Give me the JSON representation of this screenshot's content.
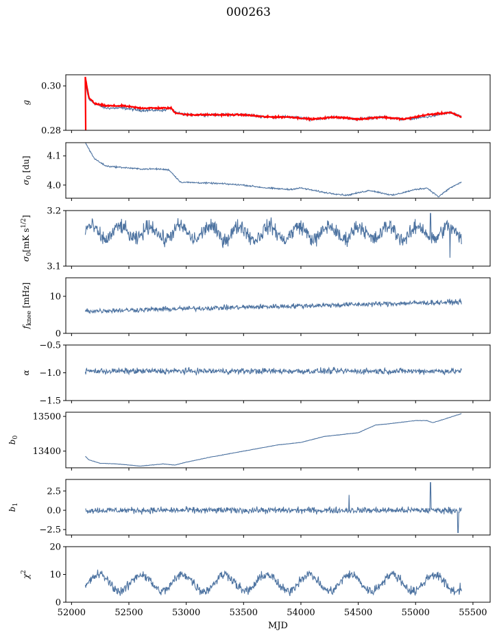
{
  "title": "000263",
  "chart_data": [
    {
      "type": "line",
      "ylabel": "g",
      "ylim": [
        0.28,
        0.305
      ],
      "yticks": [
        0.28,
        0.3
      ],
      "ytick_labels": [
        "0.28",
        "0.30"
      ],
      "xlim": [
        51950,
        55650
      ],
      "series": [
        {
          "color": "#4c72a0",
          "x": [
            52120,
            52150,
            52200,
            52300,
            52450,
            52600,
            52700,
            52800,
            52870,
            52900,
            53000,
            53200,
            53500,
            53700,
            53900,
            54100,
            54300,
            54500,
            54700,
            54900,
            55100,
            55300,
            55400
          ],
          "y": [
            0.301,
            0.294,
            0.292,
            0.29,
            0.29,
            0.289,
            0.289,
            0.289,
            0.29,
            0.288,
            0.287,
            0.287,
            0.287,
            0.286,
            0.286,
            0.285,
            0.286,
            0.285,
            0.286,
            0.285,
            0.286,
            0.288,
            0.286
          ]
        },
        {
          "color": "#ff0000",
          "x": [
            52120,
            52150,
            52200,
            52300,
            52450,
            52600,
            52700,
            52800,
            52870,
            52900,
            53000,
            53200,
            53500,
            53700,
            53900,
            54100,
            54300,
            54500,
            54700,
            54900,
            55100,
            55300,
            55400
          ],
          "y": [
            0.304,
            0.295,
            0.292,
            0.291,
            0.291,
            0.29,
            0.29,
            0.29,
            0.29,
            0.288,
            0.287,
            0.287,
            0.287,
            0.286,
            0.286,
            0.285,
            0.286,
            0.285,
            0.286,
            0.285,
            0.287,
            0.288,
            0.286
          ]
        }
      ]
    },
    {
      "type": "line",
      "ylabel": "σ0 [du]",
      "ylim": [
        3.955,
        4.145
      ],
      "yticks": [
        4.0,
        4.1
      ],
      "ytick_labels": [
        "4.0",
        "4.1"
      ],
      "xlim": [
        51950,
        55650
      ],
      "series": [
        {
          "color": "#4c72a0",
          "x": [
            52120,
            52200,
            52300,
            52450,
            52600,
            52750,
            52850,
            52950,
            53100,
            53300,
            53500,
            53700,
            53900,
            54000,
            54200,
            54400,
            54600,
            54800,
            55000,
            55100,
            55200,
            55300,
            55400
          ],
          "y": [
            4.145,
            4.09,
            4.065,
            4.06,
            4.055,
            4.055,
            4.052,
            4.01,
            4.008,
            4.005,
            4.0,
            3.99,
            3.985,
            3.99,
            3.975,
            3.965,
            3.982,
            3.965,
            3.985,
            3.99,
            3.96,
            3.99,
            4.01
          ]
        }
      ]
    },
    {
      "type": "line",
      "ylabel": "σ0[mK s^1/2]",
      "ylim": [
        3.1,
        3.2
      ],
      "yticks": [
        3.1,
        3.2
      ],
      "ytick_labels": [
        "3.1",
        "3.2"
      ],
      "xlim": [
        51950,
        55650
      ],
      "series": [
        {
          "color": "#4c72a0",
          "mean": 3.16,
          "amp": 0.02,
          "x0": 52120,
          "x1": 55400
        }
      ]
    },
    {
      "type": "line",
      "ylabel": "fknee [mHz]",
      "ylim": [
        0,
        15
      ],
      "yticks": [
        0,
        10
      ],
      "ytick_labels": [
        "0",
        "10"
      ],
      "xlim": [
        51950,
        55650
      ],
      "series": [
        {
          "color": "#4c72a0",
          "mean_start": 6.0,
          "mean_end": 8.5,
          "amp": 1.0,
          "x0": 52120,
          "x1": 55400
        }
      ]
    },
    {
      "type": "line",
      "ylabel": "α",
      "ylim": [
        -1.5,
        -0.5
      ],
      "yticks": [
        -1.5,
        -1.0,
        -0.5
      ],
      "ytick_labels": [
        "−1.5",
        "−1.0",
        "−0.5"
      ],
      "xlim": [
        51950,
        55650
      ],
      "series": [
        {
          "color": "#4c72a0",
          "mean": -0.97,
          "amp": 0.08,
          "x0": 52120,
          "x1": 55400
        }
      ]
    },
    {
      "type": "line",
      "ylabel": "b0",
      "ylim": [
        13352,
        13512
      ],
      "yticks": [
        13400,
        13500
      ],
      "ytick_labels": [
        "13400",
        "13500"
      ],
      "xlim": [
        51950,
        55650
      ],
      "series": [
        {
          "color": "#4c72a0",
          "x": [
            52120,
            52150,
            52250,
            52400,
            52600,
            52800,
            52900,
            53000,
            53200,
            53500,
            53800,
            54000,
            54200,
            54500,
            54650,
            54800,
            55000,
            55100,
            55150,
            55250,
            55400
          ],
          "y": [
            13385,
            13375,
            13365,
            13363,
            13357,
            13363,
            13360,
            13368,
            13382,
            13400,
            13418,
            13425,
            13442,
            13453,
            13475,
            13480,
            13488,
            13488,
            13482,
            13492,
            13508
          ]
        }
      ]
    },
    {
      "type": "line",
      "ylabel": "b1",
      "ylim": [
        -3.2,
        4.0
      ],
      "yticks": [
        -2.5,
        0.0,
        2.5
      ],
      "ytick_labels": [
        "−2.5",
        "0.0",
        "2.5"
      ],
      "xlim": [
        51950,
        55650
      ],
      "series": [
        {
          "color": "#4c72a0",
          "mean": 0.0,
          "amp": 0.6,
          "x0": 52120,
          "x1": 55400
        }
      ]
    },
    {
      "type": "line",
      "ylabel": "χ2",
      "xlabel": "MJD",
      "ylim": [
        0,
        20
      ],
      "yticks": [
        0,
        10,
        20
      ],
      "ytick_labels": [
        "0",
        "10",
        "20"
      ],
      "xlim": [
        51950,
        55650
      ],
      "xticks": [
        52000,
        52500,
        53000,
        53500,
        54000,
        54500,
        55000,
        55500
      ],
      "xtick_labels": [
        "52000",
        "52500",
        "53000",
        "53500",
        "54000",
        "54500",
        "55000",
        "55500"
      ],
      "series": [
        {
          "color": "#4c72a0",
          "mean": 7.0,
          "amp": 2.5,
          "period": 365,
          "x0": 52120,
          "x1": 55400
        }
      ]
    }
  ]
}
